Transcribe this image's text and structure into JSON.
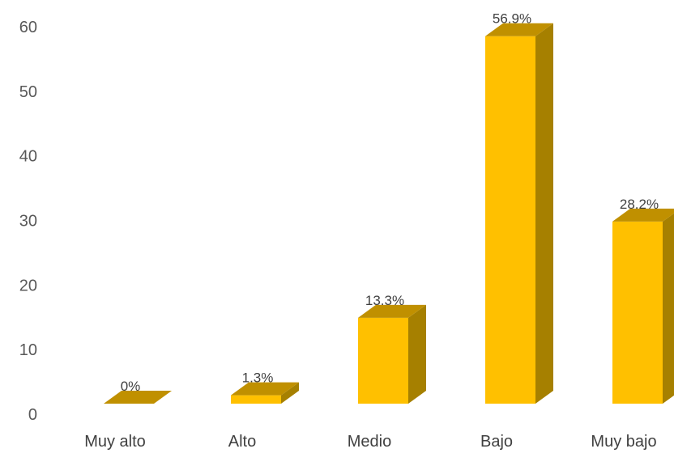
{
  "chart_data": {
    "type": "bar",
    "categories": [
      "Muy alto",
      "Alto",
      "Medio",
      "Bajo",
      "Muy bajo"
    ],
    "values": [
      0,
      1.3,
      13.3,
      56.9,
      28.2
    ],
    "data_labels": [
      "0%",
      "1.3%",
      "13.3%",
      "56.9%",
      "28.2%"
    ],
    "y_ticks": [
      "0",
      "10",
      "20",
      "30",
      "40",
      "50",
      "60"
    ],
    "ylim": [
      0,
      60
    ],
    "style": "3d",
    "grid": false,
    "legend": "none",
    "colors": {
      "bar_front": "#FFC000",
      "bar_side": "#A68000",
      "bar_top": "#C09000"
    }
  }
}
